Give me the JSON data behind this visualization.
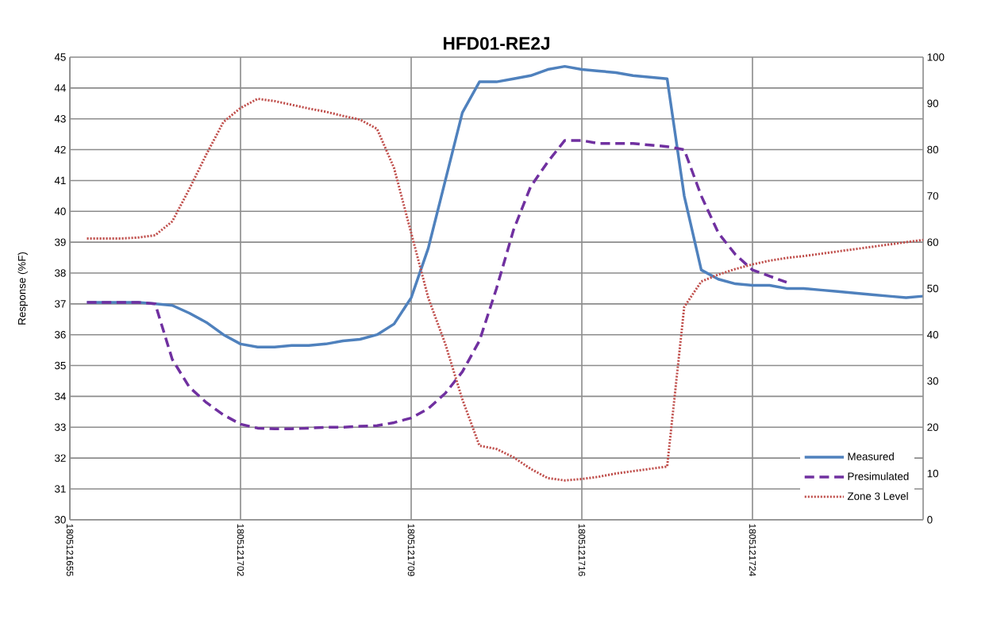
{
  "chart_data": {
    "type": "line",
    "title": "HFD01-RE2J",
    "ylabel": "Response (%F)",
    "categories": [
      "1805121655",
      null,
      null,
      null,
      null,
      null,
      null,
      null,
      null,
      null,
      "1805121702",
      null,
      null,
      null,
      null,
      null,
      null,
      null,
      null,
      null,
      "1805121709",
      null,
      null,
      null,
      null,
      null,
      null,
      null,
      null,
      null,
      "1805121716",
      null,
      null,
      null,
      null,
      null,
      null,
      null,
      null,
      null,
      "1805121724",
      null,
      null,
      null,
      null,
      null,
      null,
      null,
      null,
      null,
      null
    ],
    "ylim": [
      30,
      45
    ],
    "yticks": [
      30,
      31,
      32,
      33,
      34,
      35,
      36,
      37,
      38,
      39,
      40,
      41,
      42,
      43,
      44,
      45
    ],
    "y2lim": [
      0,
      100
    ],
    "y2ticks": [
      0,
      10,
      20,
      30,
      40,
      50,
      60,
      70,
      80,
      90,
      100
    ],
    "grid": true,
    "legend": "bottom right",
    "marker": "none",
    "series": [
      {
        "name": "Measured",
        "color": "#4f81bd",
        "line_style": "solid",
        "values": [
          null,
          37.05,
          37.05,
          37.05,
          37.05,
          37.0,
          36.95,
          36.7,
          36.4,
          36.0,
          35.7,
          35.6,
          35.6,
          35.65,
          35.65,
          35.7,
          35.8,
          35.85,
          36.0,
          36.35,
          37.2,
          38.8,
          41.0,
          43.2,
          44.2,
          44.2,
          44.3,
          44.4,
          44.6,
          44.7,
          44.6,
          44.55,
          44.5,
          44.4,
          44.35,
          44.3,
          40.5,
          38.1,
          37.8,
          37.65,
          37.6,
          37.6,
          37.5,
          37.5,
          37.45,
          37.4,
          37.35,
          37.3,
          37.25,
          37.2,
          37.25
        ]
      },
      {
        "name": "Presimulated",
        "color": "#7030a0",
        "line_style": "dashed",
        "values": [
          null,
          37.05,
          37.05,
          37.05,
          37.05,
          37.0,
          35.2,
          34.3,
          33.8,
          33.4,
          33.1,
          32.97,
          32.95,
          32.95,
          32.97,
          33.0,
          33.0,
          33.03,
          33.05,
          33.15,
          33.3,
          33.6,
          34.1,
          34.8,
          35.8,
          37.5,
          39.4,
          40.8,
          41.6,
          42.3,
          42.3,
          42.2,
          42.2,
          42.2,
          42.15,
          42.1,
          42.0,
          40.5,
          39.3,
          38.6,
          38.1,
          37.9,
          37.7,
          null,
          null,
          null,
          null,
          null,
          null,
          null,
          null
        ]
      },
      {
        "name": "Zone 3 Level",
        "color": "#c0504d",
        "line_style": "dotted",
        "axis": "y2",
        "values": [
          null,
          60.8,
          60.8,
          60.8,
          61.0,
          61.5,
          64.5,
          71.5,
          79,
          86,
          89,
          91,
          90.5,
          89.7,
          88.9,
          88.2,
          87.3,
          86.5,
          84.5,
          76,
          62,
          48,
          38,
          26,
          16,
          15.3,
          13.5,
          11,
          9,
          8.5,
          8.8,
          9.3,
          10,
          10.5,
          11,
          11.5,
          46,
          51.5,
          53,
          54.2,
          55.2,
          56,
          56.6,
          57,
          57.5,
          58,
          58.5,
          59,
          59.5,
          60,
          60.5
        ]
      }
    ]
  }
}
